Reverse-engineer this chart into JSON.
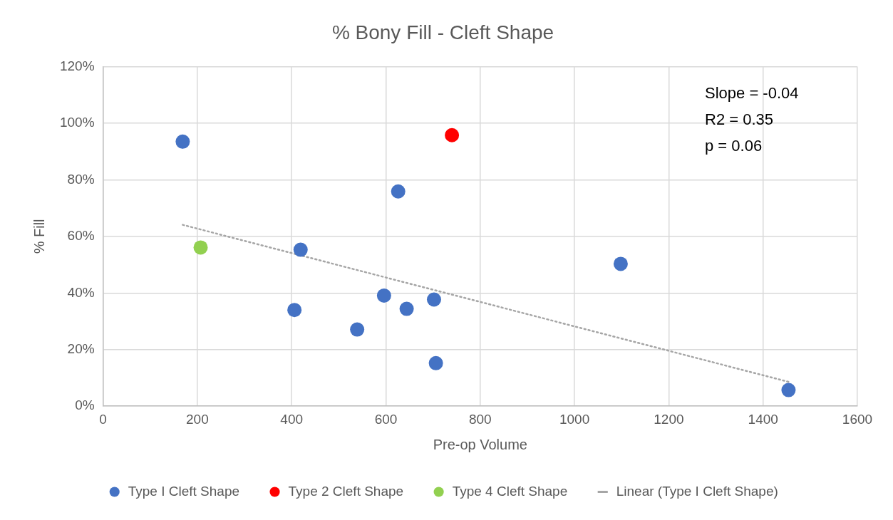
{
  "chart_data": {
    "type": "scatter",
    "title": "% Bony Fill - Cleft Shape",
    "xlabel": "Pre-op Volume",
    "ylabel": "% Fill",
    "xlim": [
      0,
      1600
    ],
    "xticks": [
      0,
      200,
      400,
      600,
      800,
      1000,
      1200,
      1400,
      1600
    ],
    "ylim": [
      0,
      120
    ],
    "yticks": [
      {
        "value": 0,
        "label": "0%"
      },
      {
        "value": 20,
        "label": "20%"
      },
      {
        "value": 40,
        "label": "40%"
      },
      {
        "value": 60,
        "label": "60%"
      },
      {
        "value": 80,
        "label": "80%"
      },
      {
        "value": 100,
        "label": "100%"
      },
      {
        "value": 120,
        "label": "120%"
      }
    ],
    "grid": true,
    "legend": "bottom",
    "marker": "circle",
    "annotations": [
      "Slope = -0.04",
      "R2 = 0.35",
      "p = 0.06"
    ],
    "series": [
      {
        "name": "Type I Cleft Shape",
        "color": "#4472c4",
        "x": [
          169,
          419,
          406,
          539,
          596,
          626,
          644,
          702,
          706,
          1098,
          1454
        ],
        "values": [
          93.5,
          55.3,
          34.0,
          27.1,
          39.1,
          75.9,
          34.4,
          37.7,
          15.2,
          50.3,
          5.7
        ]
      },
      {
        "name": "Type 2 Cleft Shape",
        "color": "#ff0000",
        "x": [
          740
        ],
        "values": [
          95.8
        ]
      },
      {
        "name": "Type 4 Cleft Shape",
        "color": "#92d050",
        "x": [
          207
        ],
        "values": [
          56.1
        ]
      },
      {
        "name": "Linear (Type I Cleft Shape)",
        "type": "line",
        "color": "#a6a6a6",
        "line_style": "dotted",
        "marker": "none",
        "x": [
          169,
          1454
        ],
        "values": [
          64.1,
          8.6
        ]
      }
    ]
  }
}
